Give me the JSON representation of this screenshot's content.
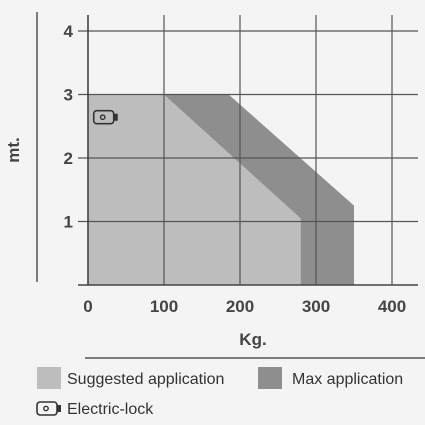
{
  "chart_data": {
    "type": "area",
    "xlabel": "Kg.",
    "ylabel": "mt.",
    "xlim": [
      0,
      420
    ],
    "ylim": [
      0,
      4.2
    ],
    "xticks": [
      "0",
      "100",
      "200",
      "300",
      "400"
    ],
    "yticks": [
      "1",
      "2",
      "3",
      "4"
    ],
    "grid": true,
    "series": [
      {
        "name": "Max application",
        "color": "#8e8e8e",
        "points": [
          [
            0,
            0
          ],
          [
            0,
            3
          ],
          [
            185,
            3
          ],
          [
            350,
            1.25
          ],
          [
            350,
            0
          ]
        ]
      },
      {
        "name": "Suggested application",
        "color": "#bdbdbd",
        "points": [
          [
            0,
            0
          ],
          [
            0,
            3
          ],
          [
            100,
            3
          ],
          [
            280,
            1.05
          ],
          [
            280,
            0
          ]
        ]
      }
    ],
    "marker": {
      "name": "Electric-lock",
      "icon": "electric-lock-icon",
      "x": 22,
      "y": 2.65
    },
    "legend": [
      {
        "label": "Suggested application",
        "color": "#bdbdbd"
      },
      {
        "label": "Max application",
        "color": "#8e8e8e"
      }
    ],
    "legend_note": "Electric-lock"
  }
}
